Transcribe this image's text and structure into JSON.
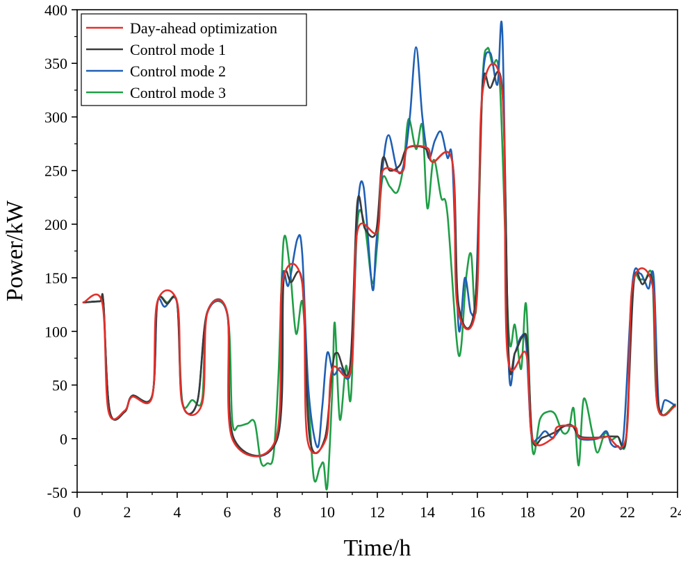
{
  "chart_data": {
    "type": "line",
    "title": "",
    "xlabel": "Time/h",
    "ylabel": "Power/kW",
    "xlim": [
      0,
      24
    ],
    "ylim": [
      -50,
      400
    ],
    "xticks": [
      0,
      2,
      4,
      6,
      8,
      10,
      12,
      14,
      16,
      18,
      20,
      22,
      24
    ],
    "yticks": [
      -50,
      0,
      50,
      100,
      150,
      200,
      250,
      300,
      350,
      400
    ],
    "grid": false,
    "legend_position": "top-left",
    "series": [
      {
        "name": "Day-ahead optimization",
        "color": "#e3302b",
        "points": [
          [
            0.25,
            127
          ],
          [
            1.0,
            127
          ],
          [
            1.25,
            26
          ],
          [
            1.9,
            26
          ],
          [
            2.2,
            39
          ],
          [
            3.0,
            39
          ],
          [
            3.2,
            127
          ],
          [
            4.0,
            127
          ],
          [
            4.2,
            33
          ],
          [
            5.0,
            33
          ],
          [
            5.2,
            117
          ],
          [
            6.0,
            117
          ],
          [
            6.2,
            0
          ],
          [
            7.95,
            0
          ],
          [
            8.2,
            145
          ],
          [
            9.0,
            145
          ],
          [
            9.2,
            0
          ],
          [
            9.95,
            0
          ],
          [
            10.2,
            65
          ],
          [
            10.95,
            65
          ],
          [
            11.2,
            193
          ],
          [
            12.0,
            193
          ],
          [
            12.2,
            249
          ],
          [
            13.0,
            249
          ],
          [
            13.2,
            271
          ],
          [
            14.0,
            271
          ],
          [
            14.2,
            258
          ],
          [
            15.0,
            258
          ],
          [
            15.2,
            123
          ],
          [
            15.95,
            123
          ],
          [
            16.2,
            322
          ],
          [
            17.0,
            322
          ],
          [
            17.2,
            79
          ],
          [
            17.95,
            79
          ],
          [
            18.2,
            0
          ],
          [
            19.0,
            0
          ],
          [
            19.2,
            11
          ],
          [
            19.9,
            11
          ],
          [
            20.1,
            1
          ],
          [
            21.0,
            1
          ],
          [
            21.2,
            2
          ],
          [
            21.95,
            2
          ],
          [
            22.2,
            143
          ],
          [
            23.0,
            143
          ],
          [
            23.2,
            30
          ],
          [
            23.9,
            30
          ]
        ]
      },
      {
        "name": "Control mode 1",
        "color": "#3a3a3a",
        "points": [
          [
            0.25,
            127
          ],
          [
            0.9,
            128
          ],
          [
            1.05,
            127
          ],
          [
            1.3,
            26
          ],
          [
            1.9,
            25
          ],
          [
            2.2,
            40
          ],
          [
            3.0,
            40
          ],
          [
            3.2,
            126
          ],
          [
            3.6,
            126
          ],
          [
            4.0,
            126
          ],
          [
            4.2,
            34
          ],
          [
            4.8,
            34
          ],
          [
            5.2,
            118
          ],
          [
            6.0,
            117
          ],
          [
            6.25,
            1
          ],
          [
            8.0,
            0
          ],
          [
            8.25,
            146
          ],
          [
            8.55,
            146
          ],
          [
            9.0,
            145
          ],
          [
            9.3,
            0
          ],
          [
            9.9,
            0
          ],
          [
            10.2,
            66
          ],
          [
            10.4,
            80
          ],
          [
            10.9,
            66
          ],
          [
            11.2,
            220
          ],
          [
            11.5,
            196
          ],
          [
            11.95,
            193
          ],
          [
            12.2,
            260
          ],
          [
            12.5,
            250
          ],
          [
            12.9,
            255
          ],
          [
            13.2,
            271
          ],
          [
            13.9,
            271
          ],
          [
            14.2,
            258
          ],
          [
            15.0,
            258
          ],
          [
            15.25,
            124
          ],
          [
            15.9,
            124
          ],
          [
            16.2,
            325
          ],
          [
            16.5,
            327
          ],
          [
            17.0,
            323
          ],
          [
            17.25,
            78
          ],
          [
            17.5,
            80
          ],
          [
            17.8,
            95
          ],
          [
            18.0,
            88
          ],
          [
            18.2,
            0
          ],
          [
            18.6,
            1
          ],
          [
            19.1,
            6
          ],
          [
            19.5,
            12
          ],
          [
            19.8,
            12
          ],
          [
            20.1,
            2
          ],
          [
            20.8,
            1
          ],
          [
            21.2,
            2
          ],
          [
            21.6,
            2
          ],
          [
            21.95,
            2
          ],
          [
            22.25,
            145
          ],
          [
            22.6,
            144
          ],
          [
            23.0,
            145
          ],
          [
            23.25,
            30
          ],
          [
            23.9,
            31
          ]
        ]
      },
      {
        "name": "Control mode 2",
        "color": "#1f5fb4",
        "points": [
          [
            0.25,
            127
          ],
          [
            0.9,
            128
          ],
          [
            1.05,
            127
          ],
          [
            1.3,
            26
          ],
          [
            1.9,
            25
          ],
          [
            2.2,
            40
          ],
          [
            3.0,
            40
          ],
          [
            3.2,
            125
          ],
          [
            3.5,
            123
          ],
          [
            4.0,
            126
          ],
          [
            4.2,
            34
          ],
          [
            4.8,
            34
          ],
          [
            5.2,
            117
          ],
          [
            6.0,
            116
          ],
          [
            6.25,
            0
          ],
          [
            8.0,
            0
          ],
          [
            8.2,
            148
          ],
          [
            8.45,
            143
          ],
          [
            8.8,
            186
          ],
          [
            9.0,
            172
          ],
          [
            9.25,
            45
          ],
          [
            9.6,
            -8
          ],
          [
            9.8,
            30
          ],
          [
            10.0,
            80
          ],
          [
            10.25,
            60
          ],
          [
            10.5,
            66
          ],
          [
            10.95,
            66
          ],
          [
            11.2,
            210
          ],
          [
            11.45,
            235
          ],
          [
            11.8,
            140
          ],
          [
            11.95,
            180
          ],
          [
            12.2,
            250
          ],
          [
            12.45,
            283
          ],
          [
            12.8,
            250
          ],
          [
            13.05,
            255
          ],
          [
            13.3,
            300
          ],
          [
            13.55,
            365
          ],
          [
            13.8,
            300
          ],
          [
            14.05,
            262
          ],
          [
            14.3,
            278
          ],
          [
            14.55,
            286
          ],
          [
            14.8,
            262
          ],
          [
            15.0,
            258
          ],
          [
            15.25,
            103
          ],
          [
            15.5,
            150
          ],
          [
            15.75,
            117
          ],
          [
            15.95,
            140
          ],
          [
            16.2,
            330
          ],
          [
            16.5,
            360
          ],
          [
            16.8,
            330
          ],
          [
            17.0,
            377
          ],
          [
            17.25,
            70
          ],
          [
            17.5,
            80
          ],
          [
            17.75,
            95
          ],
          [
            17.95,
            88
          ],
          [
            18.15,
            5
          ],
          [
            18.4,
            0
          ],
          [
            18.7,
            7
          ],
          [
            19.0,
            1
          ],
          [
            19.35,
            10
          ],
          [
            19.6,
            12
          ],
          [
            19.9,
            10
          ],
          [
            20.1,
            0
          ],
          [
            20.8,
            0
          ],
          [
            21.15,
            7
          ],
          [
            21.35,
            -5
          ],
          [
            21.6,
            -7
          ],
          [
            21.85,
            5
          ],
          [
            22.2,
            145
          ],
          [
            22.5,
            154
          ],
          [
            22.7,
            146
          ],
          [
            22.85,
            140
          ],
          [
            23.05,
            150
          ],
          [
            23.25,
            30
          ],
          [
            23.5,
            36
          ],
          [
            23.9,
            31
          ]
        ]
      },
      {
        "name": "Control mode 3",
        "color": "#1f9e46",
        "points": [
          [
            0.25,
            127
          ],
          [
            0.9,
            128
          ],
          [
            1.05,
            127
          ],
          [
            1.3,
            26
          ],
          [
            1.9,
            25
          ],
          [
            2.2,
            40
          ],
          [
            3.0,
            40
          ],
          [
            3.2,
            126
          ],
          [
            3.6,
            127
          ],
          [
            4.0,
            126
          ],
          [
            4.2,
            35
          ],
          [
            4.6,
            36
          ],
          [
            5.0,
            37
          ],
          [
            5.2,
            117
          ],
          [
            6.0,
            117
          ],
          [
            6.2,
            17
          ],
          [
            6.45,
            12
          ],
          [
            6.8,
            14
          ],
          [
            7.1,
            15
          ],
          [
            7.35,
            -22
          ],
          [
            7.6,
            -23
          ],
          [
            7.85,
            -15
          ],
          [
            8.05,
            60
          ],
          [
            8.25,
            184
          ],
          [
            8.5,
            160
          ],
          [
            8.75,
            98
          ],
          [
            9.0,
            128
          ],
          [
            9.2,
            60
          ],
          [
            9.45,
            -35
          ],
          [
            9.7,
            -27
          ],
          [
            9.85,
            -23
          ],
          [
            10.0,
            -45
          ],
          [
            10.2,
            45
          ],
          [
            10.3,
            108
          ],
          [
            10.5,
            18
          ],
          [
            10.75,
            68
          ],
          [
            10.95,
            40
          ],
          [
            11.2,
            200
          ],
          [
            11.5,
            198
          ],
          [
            11.8,
            145
          ],
          [
            12.0,
            182
          ],
          [
            12.2,
            242
          ],
          [
            12.5,
            235
          ],
          [
            12.8,
            230
          ],
          [
            13.05,
            255
          ],
          [
            13.25,
            298
          ],
          [
            13.55,
            270
          ],
          [
            13.8,
            292
          ],
          [
            14.0,
            215
          ],
          [
            14.25,
            260
          ],
          [
            14.55,
            225
          ],
          [
            14.8,
            210
          ],
          [
            15.25,
            78
          ],
          [
            15.55,
            150
          ],
          [
            15.75,
            172
          ],
          [
            15.95,
            122
          ],
          [
            16.2,
            330
          ],
          [
            16.4,
            364
          ],
          [
            16.6,
            349
          ],
          [
            16.9,
            330
          ],
          [
            17.25,
            100
          ],
          [
            17.5,
            106
          ],
          [
            17.75,
            65
          ],
          [
            17.95,
            125
          ],
          [
            18.2,
            -10
          ],
          [
            18.5,
            18
          ],
          [
            18.8,
            25
          ],
          [
            19.1,
            23
          ],
          [
            19.4,
            6
          ],
          [
            19.65,
            8
          ],
          [
            19.85,
            28
          ],
          [
            20.05,
            -25
          ],
          [
            20.25,
            37
          ],
          [
            20.6,
            5
          ],
          [
            20.8,
            -13
          ],
          [
            21.1,
            5
          ],
          [
            21.35,
            -1
          ],
          [
            21.6,
            2
          ],
          [
            21.95,
            0
          ],
          [
            22.2,
            140
          ],
          [
            22.5,
            148
          ],
          [
            22.7,
            148
          ],
          [
            23.0,
            148
          ],
          [
            23.2,
            30
          ],
          [
            23.9,
            32
          ]
        ]
      }
    ]
  }
}
